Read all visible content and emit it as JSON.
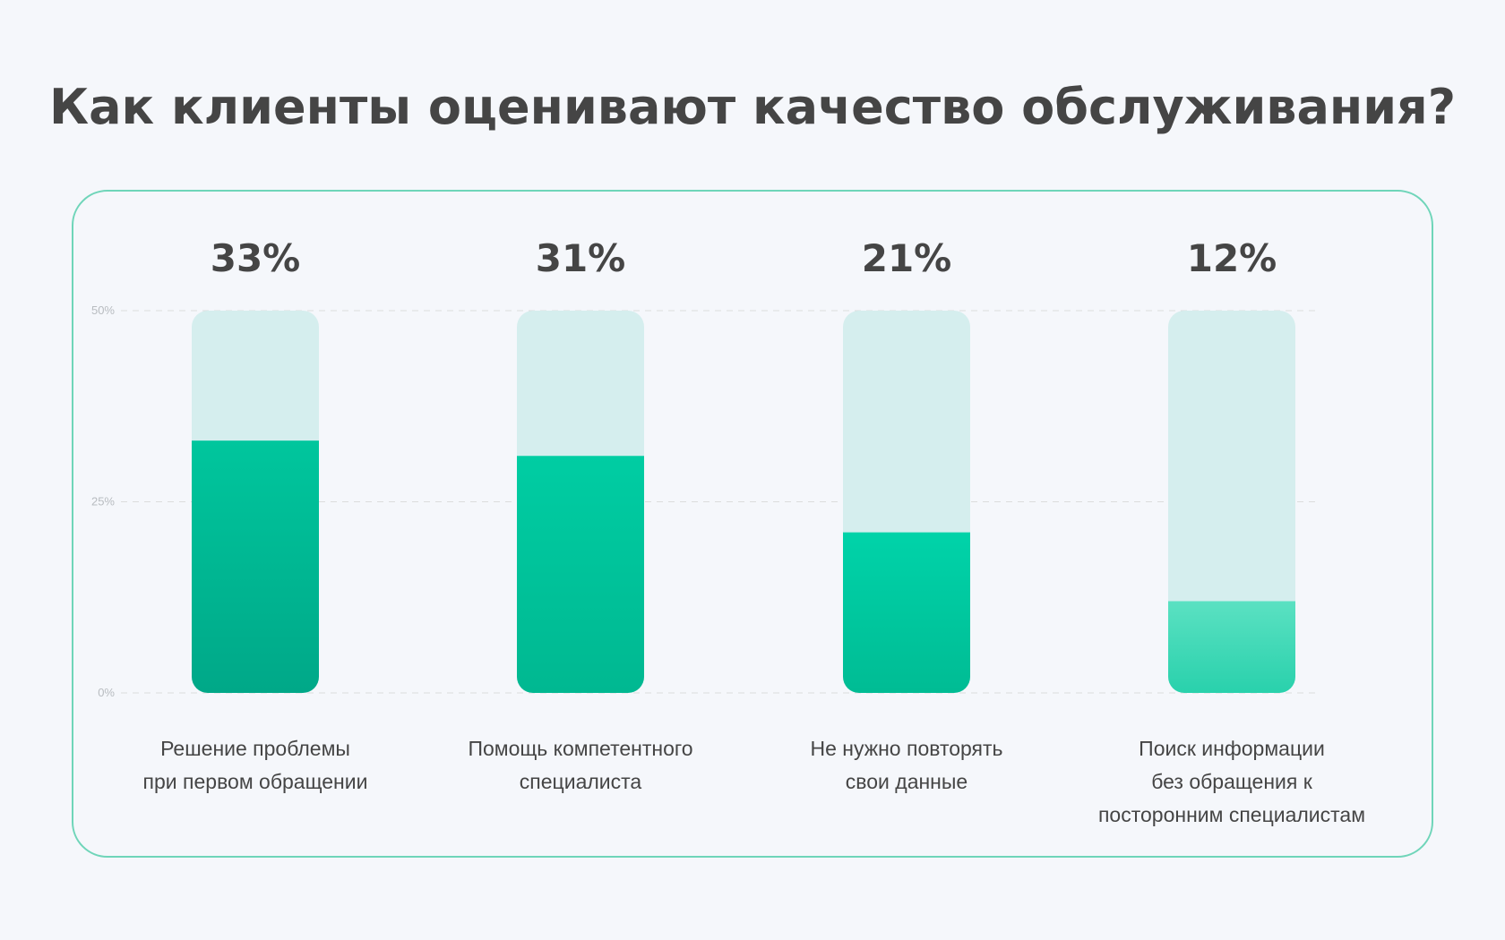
{
  "title": "Как клиенты оценивают качество обслуживания?",
  "colors": {
    "background": "#f5f7fb",
    "frame_border": "#6fd5b9",
    "track": "#d5eeee",
    "bar_gradients": [
      [
        "#00c69d",
        "#00a888"
      ],
      [
        "#00cda3",
        "#00b891"
      ],
      [
        "#00d3a9",
        "#00bc94"
      ],
      [
        "#5be1c2",
        "#29d1ac"
      ]
    ],
    "value_text": "#454545",
    "tick_text": "#b8bcc0",
    "gridline": "#dcdcdc"
  },
  "chart_data": {
    "type": "bar",
    "title": "Как клиенты оценивают качество обслуживания?",
    "categories": [
      [
        "Решение проблемы",
        "при первом обращении"
      ],
      [
        "Помощь компетентного",
        "специалиста"
      ],
      [
        "Не нужно повторять",
        "свои данные"
      ],
      [
        "Поиск информации",
        "без обращения к",
        "посторонним специалистам"
      ]
    ],
    "values": [
      33,
      31,
      21,
      12
    ],
    "value_labels": [
      "33%",
      "31%",
      "21%",
      "12%"
    ],
    "yticks": [
      "0%",
      "25%",
      "50%"
    ],
    "ylim": [
      0,
      50
    ],
    "grid": true,
    "xlabel": "",
    "ylabel": ""
  }
}
